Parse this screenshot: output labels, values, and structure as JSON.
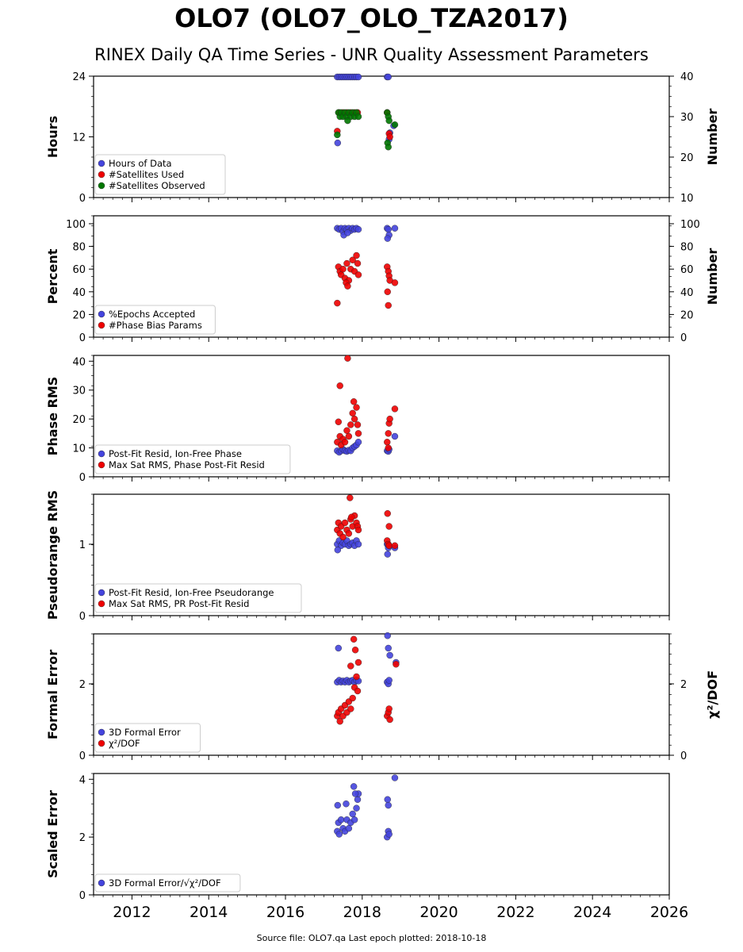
{
  "title": "OLO7 (OLO7_OLO_TZA2017)",
  "subtitle": "RINEX Daily QA Time Series - UNR Quality Assessment Parameters",
  "source_note": "Source file: OLO7.qa Last epoch plotted: 2018-10-18",
  "colors": {
    "blue": "#4444dd",
    "red": "#ee0000",
    "green": "#007700",
    "edge": "#222222"
  },
  "chart_data": [
    {
      "type": "scatter",
      "ylabel": "Hours",
      "y2label": "Number",
      "xlim": [
        2011,
        2026
      ],
      "ylim": [
        0,
        24
      ],
      "yticks": [
        0,
        12,
        24
      ],
      "y2lim": [
        10,
        40
      ],
      "y2ticks": [
        10,
        20,
        30,
        40
      ],
      "legend": "lower-left",
      "series": [
        {
          "name": "Hours of Data",
          "color": "blue",
          "axis": "left",
          "x": [
            2017.35,
            2017.4,
            2017.45,
            2017.5,
            2017.55,
            2017.6,
            2017.65,
            2017.7,
            2017.75,
            2017.8,
            2017.85,
            2017.9,
            2017.36,
            2018.65,
            2018.68,
            2018.72,
            2018.7,
            2018.82
          ],
          "y": [
            24,
            24,
            24,
            24,
            24,
            24,
            24,
            24,
            24,
            24,
            24,
            24,
            10.8,
            24,
            24,
            12.8,
            11.5,
            14.2
          ]
        },
        {
          "name": "#Satellites Used",
          "color": "red",
          "axis": "right",
          "x": [
            2017.35,
            2017.4,
            2017.5,
            2017.6,
            2017.7,
            2017.8,
            2017.88,
            2018.65,
            2018.7,
            2018.72
          ],
          "y": [
            26.4,
            31,
            31,
            31,
            31,
            31,
            31,
            31,
            25.8,
            25
          ]
        },
        {
          "name": "#Satellites Observed",
          "color": "green",
          "axis": "right",
          "x": [
            2017.35,
            2017.38,
            2017.42,
            2017.45,
            2017.5,
            2017.55,
            2017.6,
            2017.65,
            2017.7,
            2017.75,
            2017.8,
            2017.85,
            2017.9,
            2017.62,
            2018.65,
            2018.68,
            2018.7,
            2018.66,
            2018.68,
            2018.85
          ],
          "y": [
            25.5,
            31,
            30,
            31,
            30,
            31,
            30,
            31,
            30,
            31,
            30,
            31,
            30,
            29,
            31,
            30,
            29,
            23.5,
            22.5,
            28
          ]
        }
      ]
    },
    {
      "type": "scatter",
      "ylabel": "Percent",
      "y2label": "Number",
      "xlim": [
        2011,
        2026
      ],
      "ylim": [
        0,
        107
      ],
      "yticks": [
        0,
        20,
        40,
        60,
        80,
        100
      ],
      "y2lim": [
        0,
        107
      ],
      "y2ticks": [
        0,
        20,
        40,
        60,
        80,
        100
      ],
      "legend": "lower-left",
      "series": [
        {
          "name": "%Epochs Accepted",
          "color": "blue",
          "axis": "left",
          "x": [
            2017.35,
            2017.4,
            2017.45,
            2017.5,
            2017.55,
            2017.6,
            2017.65,
            2017.7,
            2017.75,
            2017.8,
            2017.85,
            2017.9,
            2017.52,
            2017.62,
            2018.65,
            2018.68,
            2018.7,
            2018.66,
            2018.85
          ],
          "y": [
            96,
            95,
            96,
            93,
            96,
            95,
            96,
            94,
            96,
            95,
            96,
            95,
            90,
            92,
            96,
            95,
            90,
            87,
            96
          ]
        },
        {
          "name": "#Phase Bias Params",
          "color": "red",
          "axis": "left",
          "x": [
            2017.35,
            2017.38,
            2017.42,
            2017.45,
            2017.5,
            2017.55,
            2017.6,
            2017.65,
            2017.7,
            2017.75,
            2017.8,
            2017.85,
            2017.88,
            2017.9,
            2017.58,
            2017.62,
            2018.65,
            2018.68,
            2018.7,
            2018.72,
            2018.66,
            2018.68,
            2018.85
          ],
          "y": [
            30,
            62,
            58,
            55,
            60,
            52,
            65,
            50,
            60,
            68,
            58,
            72,
            65,
            55,
            48,
            45,
            62,
            58,
            54,
            50,
            40,
            28,
            48
          ]
        }
      ]
    },
    {
      "type": "scatter",
      "ylabel": "Phase RMS",
      "xlim": [
        2011,
        2026
      ],
      "ylim": [
        0,
        42
      ],
      "yticks": [
        0,
        10,
        20,
        30,
        40
      ],
      "legend": "lower-left",
      "series": [
        {
          "name": "Post-Fit Resid, Ion-Free Phase",
          "color": "blue",
          "axis": "left",
          "x": [
            2017.35,
            2017.4,
            2017.45,
            2017.5,
            2017.55,
            2017.6,
            2017.65,
            2017.7,
            2017.75,
            2017.8,
            2017.85,
            2017.9,
            2018.65,
            2018.68,
            2018.7,
            2018.85
          ],
          "y": [
            9,
            8.5,
            9,
            9.5,
            9,
            8.8,
            9.2,
            9,
            10,
            10.5,
            11,
            12,
            9,
            8.8,
            9.5,
            14
          ]
        },
        {
          "name": "Max Sat RMS, Phase Post-Fit Resid",
          "color": "red",
          "axis": "left",
          "x": [
            2017.35,
            2017.38,
            2017.42,
            2017.45,
            2017.5,
            2017.55,
            2017.6,
            2017.65,
            2017.7,
            2017.75,
            2017.8,
            2017.85,
            2017.88,
            2017.9,
            2017.42,
            2017.62,
            2017.78,
            2018.65,
            2018.68,
            2018.7,
            2018.72,
            2018.68,
            2018.85
          ],
          "y": [
            12,
            19,
            14,
            11,
            13,
            12,
            16,
            14,
            18,
            22,
            20,
            24,
            18,
            15,
            31.5,
            41,
            26,
            12,
            15,
            18.5,
            20,
            10,
            23.5
          ]
        }
      ]
    },
    {
      "type": "scatter",
      "ylabel": "Pseudorange RMS",
      "xlim": [
        2011,
        2026
      ],
      "ylim": [
        0,
        1.7
      ],
      "yticks": [
        0,
        1
      ],
      "legend": "lower-left",
      "series": [
        {
          "name": "Post-Fit Resid, Ion-Free Pseudorange",
          "color": "blue",
          "axis": "left",
          "x": [
            2017.35,
            2017.4,
            2017.45,
            2017.5,
            2017.55,
            2017.6,
            2017.65,
            2017.7,
            2017.75,
            2017.8,
            2017.85,
            2017.9,
            2017.36,
            2018.65,
            2018.68,
            2018.7,
            2018.66,
            2018.85
          ],
          "y": [
            1.0,
            1.05,
            0.98,
            1.02,
            1.0,
            1.05,
            0.98,
            1.0,
            1.02,
            0.98,
            1.05,
            1.0,
            0.92,
            1.0,
            0.95,
            0.98,
            0.86,
            0.95
          ]
        },
        {
          "name": "Max Sat RMS, PR Post-Fit Resid",
          "color": "red",
          "axis": "left",
          "x": [
            2017.35,
            2017.38,
            2017.42,
            2017.45,
            2017.5,
            2017.55,
            2017.6,
            2017.65,
            2017.7,
            2017.75,
            2017.8,
            2017.85,
            2017.88,
            2017.9,
            2017.68,
            2017.72,
            2018.65,
            2018.68,
            2018.7,
            2018.66,
            2018.7,
            2018.85
          ],
          "y": [
            1.2,
            1.3,
            1.15,
            1.25,
            1.1,
            1.3,
            1.2,
            1.15,
            1.35,
            1.25,
            1.4,
            1.3,
            1.25,
            1.2,
            1.65,
            1.38,
            1.05,
            1.0,
            0.98,
            1.43,
            1.25,
            0.98
          ]
        }
      ]
    },
    {
      "type": "scatter",
      "ylabel": "Formal Error",
      "y2label": "χ²/DOF",
      "xlim": [
        2011,
        2026
      ],
      "ylim": [
        0,
        3.4
      ],
      "yticks": [
        0,
        2
      ],
      "y2lim": [
        0,
        3.4
      ],
      "y2ticks": [
        0,
        2
      ],
      "legend": "lower-left",
      "series": [
        {
          "name": "3D Formal Error",
          "color": "blue",
          "axis": "left",
          "x": [
            2017.35,
            2017.4,
            2017.45,
            2017.5,
            2017.55,
            2017.6,
            2017.65,
            2017.7,
            2017.75,
            2017.8,
            2017.85,
            2017.9,
            2017.38,
            2018.65,
            2018.68,
            2018.7,
            2018.66,
            2018.68,
            2018.72,
            2018.88
          ],
          "y": [
            2.05,
            2.1,
            2.05,
            2.08,
            2.05,
            2.1,
            2.05,
            2.08,
            2.1,
            2.05,
            2.1,
            2.08,
            3.0,
            2.05,
            2.0,
            2.1,
            3.35,
            3.0,
            2.8,
            2.6
          ]
        },
        {
          "name": "χ²/DOF",
          "color": "red",
          "axis": "left",
          "x": [
            2017.35,
            2017.38,
            2017.42,
            2017.45,
            2017.5,
            2017.55,
            2017.6,
            2017.65,
            2017.7,
            2017.75,
            2017.8,
            2017.85,
            2017.88,
            2017.9,
            2017.7,
            2017.78,
            2017.82,
            2018.65,
            2018.68,
            2018.7,
            2018.72,
            2018.88
          ],
          "y": [
            1.1,
            1.2,
            0.95,
            1.3,
            1.1,
            1.4,
            1.2,
            1.5,
            1.3,
            1.6,
            1.9,
            2.2,
            1.8,
            2.6,
            2.5,
            3.25,
            2.95,
            1.1,
            1.2,
            1.3,
            1.0,
            2.55
          ]
        }
      ]
    },
    {
      "type": "scatter",
      "ylabel": "Scaled Error",
      "xlim": [
        2011,
        2026
      ],
      "ylim": [
        0,
        4.2
      ],
      "yticks": [
        0,
        2,
        4
      ],
      "xticks": [
        2012,
        2014,
        2016,
        2018,
        2020,
        2022,
        2024,
        2026
      ],
      "legend": "lower-left",
      "series": [
        {
          "name": "3D Formal Error/√χ²/DOF",
          "color": "blue",
          "axis": "left",
          "x": [
            2017.35,
            2017.38,
            2017.4,
            2017.45,
            2017.5,
            2017.55,
            2017.6,
            2017.65,
            2017.7,
            2017.75,
            2017.8,
            2017.85,
            2017.88,
            2017.9,
            2017.36,
            2017.58,
            2017.78,
            2017.82,
            2018.65,
            2018.68,
            2018.7,
            2018.66,
            2018.68,
            2018.85
          ],
          "y": [
            2.2,
            2.5,
            2.1,
            2.6,
            2.3,
            2.2,
            2.6,
            2.3,
            2.5,
            2.8,
            2.6,
            3.0,
            3.3,
            3.5,
            3.1,
            3.15,
            3.75,
            3.5,
            2.0,
            2.2,
            2.1,
            3.3,
            3.1,
            4.05
          ]
        }
      ]
    }
  ]
}
